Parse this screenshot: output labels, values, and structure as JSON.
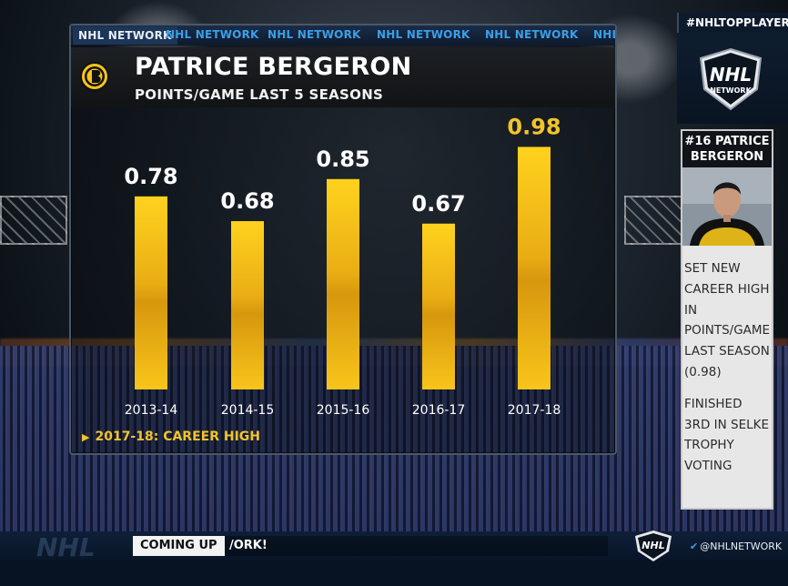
{
  "header": {
    "ticker_tags": [
      "NHL NETWORK",
      "NHL NETWORK",
      "NHL NETWORK",
      "NHL NETWORK",
      "NHL NETWORK",
      "NHL NETWORK"
    ]
  },
  "player": {
    "name": "PATRICE BERGERON",
    "stat_title": "POINTS/GAME LAST 5 SEASONS"
  },
  "chart_data": {
    "type": "bar",
    "title": "POINTS/GAME LAST 5 SEASONS",
    "categories": [
      "2013-14",
      "2014-15",
      "2015-16",
      "2016-17",
      "2017-18"
    ],
    "values": [
      0.78,
      0.68,
      0.85,
      0.67,
      0.98
    ],
    "value_labels": [
      "0.78",
      "0.68",
      "0.85",
      "0.67",
      "0.98"
    ],
    "highlight_index": 4,
    "colors": {
      "bar": "#f5c518",
      "highlight_label": "#f2c42a",
      "label": "#ffffff"
    },
    "grid": false
  },
  "note": "2017-18: CAREER HIGH",
  "sidebar": {
    "hashtag": "#NHLTOPPLAYERS",
    "logo_text": "NHL",
    "logo_sub": "NETWORK",
    "player_card_title": "#16 PATRICE BERGERON",
    "facts": [
      "SET NEW CAREER HIGH IN POINTS/GAME LAST SEASON (0.98)",
      "FINISHED 3RD IN SELKE TROPHY VOTING"
    ]
  },
  "bottom_bar": {
    "watermark": "NHL",
    "coming_up_label": "COMING UP",
    "ticker_text": "/ORK!",
    "twitter_handle": "@NHLNETWORK"
  },
  "colors": {
    "accent_blue": "#3aa0e8",
    "accent_gold": "#f2c42a",
    "panel_bg": "#111315"
  }
}
